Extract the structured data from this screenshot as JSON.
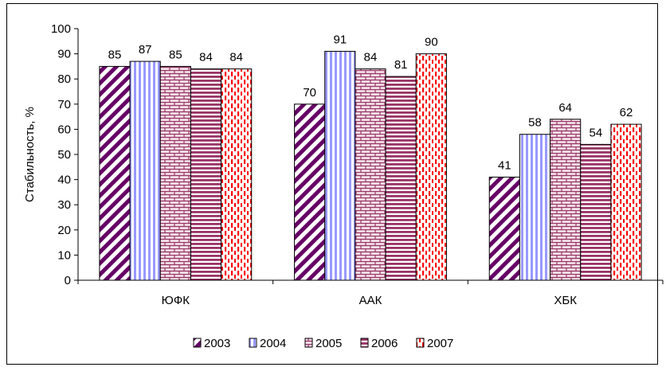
{
  "chart_data": {
    "type": "bar",
    "ylabel": "Стабильность, %",
    "xlabel": "",
    "ylim": [
      0,
      100
    ],
    "ytick_step": 10,
    "categories": [
      "ЮФК",
      "ААК",
      "ХБК"
    ],
    "series": [
      {
        "name": "2003",
        "values": [
          85,
          70,
          41
        ],
        "color": "#660066",
        "pattern": "diagonal-stripes"
      },
      {
        "name": "2004",
        "values": [
          87,
          91,
          58
        ],
        "color": "#9999ff",
        "pattern": "vertical-stripes"
      },
      {
        "name": "2005",
        "values": [
          85,
          84,
          64
        ],
        "color": "#993366",
        "pattern": "bricks"
      },
      {
        "name": "2006",
        "values": [
          84,
          81,
          54
        ],
        "color": "#993366",
        "pattern": "horizontal-stripes"
      },
      {
        "name": "2007",
        "values": [
          84,
          90,
          62
        ],
        "color": "#ff0000",
        "pattern": "dashed-vertical"
      }
    ],
    "grid": false,
    "legend_position": "bottom"
  }
}
